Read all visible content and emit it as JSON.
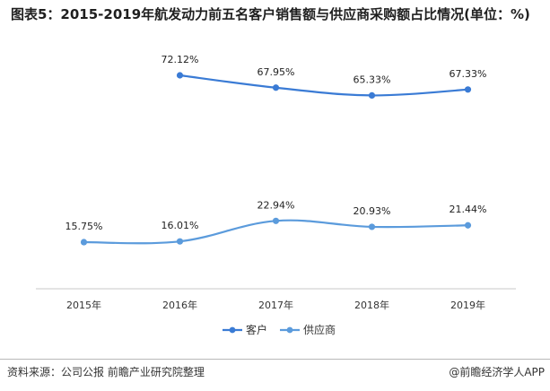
{
  "title": "图表5：2015-2019年航发动力前五名客户销售额与供应商采购额占比情况(单位：%)",
  "footer": {
    "source": "资料来源：公司公报  前瞻产业研究院整理",
    "brand": "@前瞻经济学人APP"
  },
  "colors": {
    "customer": "#3a7bd5",
    "supplier": "#5b9bdc",
    "axis": "#c8c8c8"
  },
  "chart_data": {
    "type": "line",
    "title": "图表5：2015-2019年航发动力前五名客户销售额与供应商采购额占比情况(单位：%)",
    "categories": [
      "2015年",
      "2016年",
      "2017年",
      "2018年",
      "2019年"
    ],
    "series": [
      {
        "name": "客户",
        "values": [
          null,
          72.12,
          67.95,
          65.33,
          67.33
        ],
        "labels": [
          "",
          "72.12%",
          "67.95%",
          "65.33%",
          "67.33%"
        ]
      },
      {
        "name": "供应商",
        "values": [
          15.75,
          16.01,
          22.94,
          20.93,
          21.44
        ],
        "labels": [
          "15.75%",
          "16.01%",
          "22.94%",
          "20.93%",
          "21.44%"
        ]
      }
    ],
    "xlabel": "",
    "ylabel": "",
    "grid": false,
    "legend": "bottom",
    "smooth": true
  }
}
